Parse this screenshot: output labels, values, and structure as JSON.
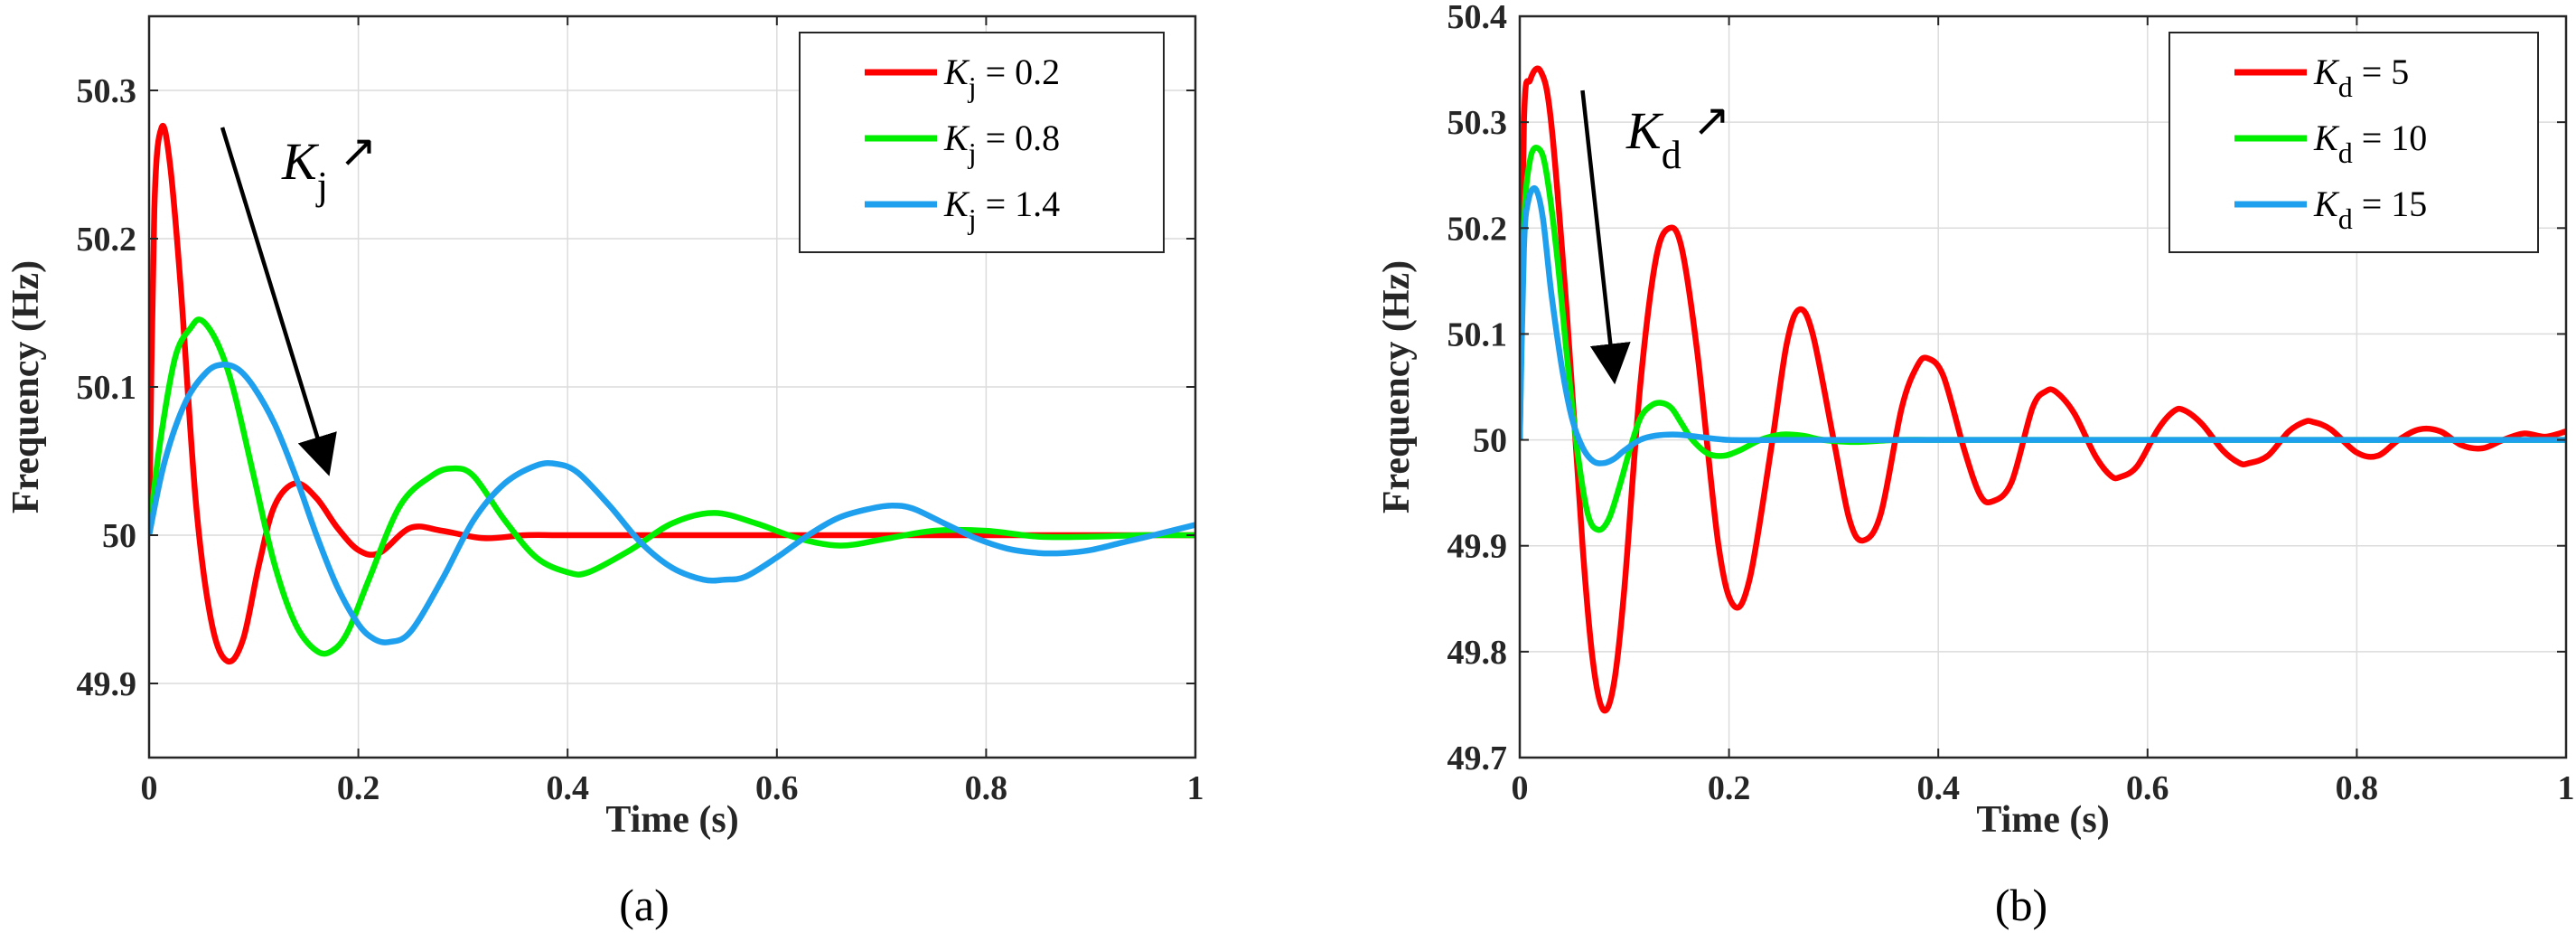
{
  "chart_data": [
    {
      "type": "line",
      "caption": "(a)",
      "xlabel": "Time (s)",
      "ylabel": "Frequency (Hz)",
      "xlim": [
        0,
        1
      ],
      "ylim": [
        49.85,
        50.35
      ],
      "xticks": [
        0,
        0.2,
        0.4,
        0.6,
        0.8,
        1
      ],
      "xtick_labels": [
        "0",
        "0.2",
        "0.4",
        "0.6",
        "0.8",
        "1"
      ],
      "yticks": [
        49.9,
        50,
        50.1,
        50.2,
        50.3
      ],
      "ytick_labels": [
        "49.9",
        "50",
        "50.1",
        "50.2",
        "50.3"
      ],
      "grid": true,
      "legend_position": "top-right",
      "annotation": {
        "symbol": "K",
        "subscript": "j",
        "arrow": "↗",
        "from": [
          0.07,
          50.275
        ],
        "to": [
          0.17,
          50.045
        ]
      },
      "series": [
        {
          "symbol": "K",
          "subscript": "j",
          "value_label": " = 0.2",
          "color": "#ff0000",
          "x": [
            0,
            0.005,
            0.012,
            0.02,
            0.03,
            0.045,
            0.06,
            0.075,
            0.09,
            0.105,
            0.12,
            0.14,
            0.16,
            0.18,
            0.2,
            0.22,
            0.25,
            0.28,
            0.32,
            0.36,
            0.4,
            0.5,
            0.6,
            0.7,
            0.8,
            0.9,
            1.0
          ],
          "y": [
            50.0,
            50.22,
            50.275,
            50.25,
            50.17,
            50.02,
            49.94,
            49.915,
            49.93,
            49.98,
            50.02,
            50.035,
            50.025,
            50.005,
            49.99,
            49.988,
            50.005,
            50.003,
            49.998,
            50.0,
            50.0,
            50.0,
            50.0,
            50.0,
            50.0,
            50.0,
            50.0
          ]
        },
        {
          "symbol": "K",
          "subscript": "j",
          "value_label": " = 0.8",
          "color": "#00ee00",
          "x": [
            0,
            0.01,
            0.025,
            0.04,
            0.05,
            0.065,
            0.08,
            0.1,
            0.12,
            0.14,
            0.16,
            0.175,
            0.19,
            0.21,
            0.24,
            0.27,
            0.29,
            0.31,
            0.34,
            0.37,
            0.4,
            0.42,
            0.46,
            0.5,
            0.54,
            0.58,
            0.62,
            0.66,
            0.7,
            0.75,
            0.8,
            0.85,
            0.9,
            0.95,
            1.0
          ],
          "y": [
            50.0,
            50.06,
            50.12,
            50.14,
            50.145,
            50.13,
            50.1,
            50.04,
            49.98,
            49.94,
            49.922,
            49.922,
            49.935,
            49.97,
            50.02,
            50.04,
            50.045,
            50.04,
            50.01,
            49.985,
            49.975,
            49.975,
            49.99,
            50.008,
            50.015,
            50.008,
            49.998,
            49.993,
            49.997,
            50.003,
            50.003,
            49.999,
            49.999,
            50.0,
            50.0
          ]
        },
        {
          "symbol": "K",
          "subscript": "j",
          "value_label": " = 1.4",
          "color": "#1fa0ef",
          "x": [
            0,
            0.015,
            0.035,
            0.055,
            0.07,
            0.085,
            0.1,
            0.12,
            0.14,
            0.16,
            0.18,
            0.2,
            0.215,
            0.23,
            0.25,
            0.28,
            0.31,
            0.34,
            0.37,
            0.39,
            0.41,
            0.44,
            0.47,
            0.5,
            0.53,
            0.55,
            0.57,
            0.6,
            0.63,
            0.66,
            0.69,
            0.71,
            0.73,
            0.76,
            0.79,
            0.82,
            0.85,
            0.875,
            0.9,
            0.93,
            0.96,
            1.0
          ],
          "y": [
            50.0,
            50.05,
            50.09,
            50.11,
            50.115,
            50.112,
            50.1,
            50.075,
            50.04,
            50.0,
            49.965,
            49.94,
            49.93,
            49.928,
            49.935,
            49.97,
            50.01,
            50.035,
            50.047,
            50.048,
            50.042,
            50.02,
            49.995,
            49.978,
            49.97,
            49.97,
            49.972,
            49.985,
            50.0,
            50.012,
            50.018,
            50.02,
            50.018,
            50.008,
            49.998,
            49.991,
            49.988,
            49.988,
            49.99,
            49.995,
            50.0,
            50.007
          ]
        }
      ],
      "legend_entries": [
        "Kj = 0.2",
        "Kj = 0.8",
        "Kj = 1.4"
      ]
    },
    {
      "type": "line",
      "caption": "(b)",
      "xlabel": "Time (s)",
      "ylabel": "Frequency (Hz)",
      "xlim": [
        0,
        1
      ],
      "ylim": [
        49.7,
        50.4
      ],
      "xticks": [
        0,
        0.2,
        0.4,
        0.6,
        0.8,
        1
      ],
      "xtick_labels": [
        "0",
        "0.2",
        "0.4",
        "0.6",
        "0.8",
        "1"
      ],
      "yticks": [
        49.7,
        49.8,
        49.9,
        50,
        50.1,
        50.2,
        50.3,
        50.4
      ],
      "ytick_labels": [
        "49.7",
        "49.8",
        "49.9",
        "50",
        "50.1",
        "50.2",
        "50.3",
        "50.4"
      ],
      "grid": true,
      "legend_position": "top-right",
      "annotation": {
        "symbol": "K",
        "subscript": "d",
        "arrow": "↗",
        "from": [
          0.06,
          50.33
        ],
        "to": [
          0.09,
          50.06
        ]
      },
      "series": [
        {
          "symbol": "K",
          "subscript": "d",
          "value_label": " = 5",
          "color": "#ff0000",
          "x": [
            0,
            0.004,
            0.01,
            0.02,
            0.03,
            0.045,
            0.06,
            0.07,
            0.08,
            0.09,
            0.1,
            0.115,
            0.13,
            0.143,
            0.155,
            0.17,
            0.19,
            0.205,
            0.22,
            0.24,
            0.255,
            0.267,
            0.28,
            0.3,
            0.315,
            0.328,
            0.345,
            0.365,
            0.38,
            0.39,
            0.405,
            0.425,
            0.44,
            0.452,
            0.47,
            0.49,
            0.503,
            0.513,
            0.53,
            0.55,
            0.565,
            0.574,
            0.59,
            0.61,
            0.625,
            0.635,
            0.652,
            0.672,
            0.688,
            0.697,
            0.715,
            0.735,
            0.75,
            0.758,
            0.775,
            0.8,
            0.82,
            0.84,
            0.86,
            0.88,
            0.9,
            0.92,
            0.94,
            0.96,
            0.98,
            1.0
          ],
          "y": [
            50.0,
            50.3,
            50.34,
            50.348,
            50.3,
            50.12,
            49.9,
            49.79,
            49.745,
            49.77,
            49.86,
            50.05,
            50.17,
            50.2,
            50.18,
            50.08,
            49.9,
            49.843,
            49.87,
            49.99,
            50.09,
            50.123,
            50.1,
            50.0,
            49.925,
            49.905,
            49.93,
            50.03,
            50.07,
            50.077,
            50.06,
            49.99,
            49.948,
            49.942,
            49.96,
            50.03,
            50.046,
            50.045,
            50.025,
            49.985,
            49.966,
            49.965,
            49.975,
            50.01,
            50.027,
            50.028,
            50.015,
            49.99,
            49.978,
            49.978,
            49.985,
            50.008,
            50.017,
            50.017,
            50.01,
            49.988,
            49.985,
            50.0,
            50.01,
            50.008,
            49.995,
            49.992,
            50.0,
            50.006,
            50.003,
            50.008
          ]
        },
        {
          "symbol": "K",
          "subscript": "d",
          "value_label": " = 10",
          "color": "#00ee00",
          "x": [
            0,
            0.004,
            0.01,
            0.018,
            0.025,
            0.035,
            0.045,
            0.055,
            0.065,
            0.075,
            0.085,
            0.095,
            0.105,
            0.115,
            0.125,
            0.135,
            0.145,
            0.155,
            0.165,
            0.18,
            0.195,
            0.21,
            0.23,
            0.25,
            0.27,
            0.29,
            0.32,
            0.36,
            0.4,
            0.5,
            0.6,
            0.7,
            0.8,
            0.9,
            1.0
          ],
          "y": [
            50.0,
            50.2,
            50.265,
            50.275,
            50.255,
            50.18,
            50.08,
            49.99,
            49.93,
            49.915,
            49.925,
            49.955,
            49.99,
            50.02,
            50.032,
            50.035,
            50.03,
            50.015,
            50.0,
            49.987,
            49.985,
            49.99,
            50.0,
            50.005,
            50.004,
            50.0,
            49.998,
            50.0,
            50.0,
            50.0,
            50.0,
            50.0,
            50.0,
            50.0,
            50.0
          ]
        },
        {
          "symbol": "K",
          "subscript": "d",
          "value_label": " = 15",
          "color": "#1fa0ef",
          "x": [
            0,
            0.004,
            0.008,
            0.015,
            0.022,
            0.03,
            0.04,
            0.05,
            0.06,
            0.07,
            0.08,
            0.09,
            0.1,
            0.115,
            0.13,
            0.15,
            0.17,
            0.2,
            0.25,
            0.3,
            0.4,
            0.5,
            0.6,
            0.7,
            0.8,
            0.9,
            1.0
          ],
          "y": [
            50.0,
            50.18,
            50.225,
            50.237,
            50.21,
            50.14,
            50.07,
            50.02,
            49.993,
            49.98,
            49.978,
            49.982,
            49.99,
            50.0,
            50.004,
            50.005,
            50.003,
            50.0,
            50.0,
            50.0,
            50.0,
            50.0,
            50.0,
            50.0,
            50.0,
            50.0,
            50.0
          ]
        }
      ],
      "legend_entries": [
        "Kd = 5",
        "Kd = 10",
        "Kd = 15"
      ]
    }
  ]
}
